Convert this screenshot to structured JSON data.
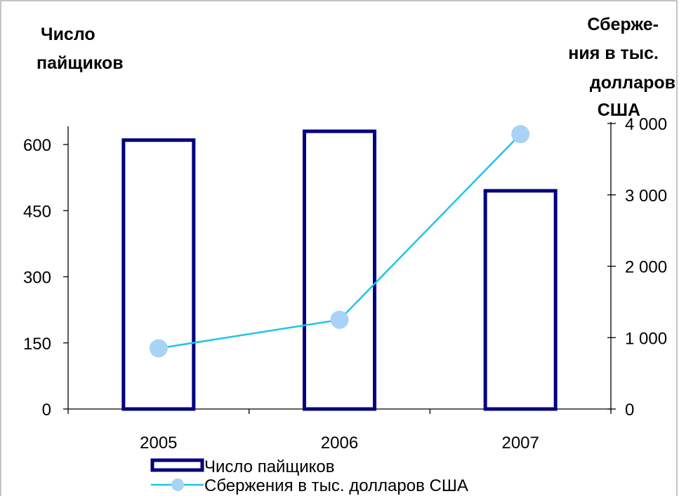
{
  "chart_data": {
    "type": "bar",
    "categories": [
      "2005",
      "2006",
      "2007"
    ],
    "series": [
      {
        "name": "Число пайщиков",
        "type": "bar",
        "axis": "left",
        "values": [
          610,
          630,
          495
        ],
        "color": "#000080"
      },
      {
        "name": "Сбержения в тыс. долларов США",
        "type": "line",
        "axis": "right",
        "values": [
          850,
          1250,
          3850
        ],
        "color": "#1fc4e8",
        "marker_color": "#a9d3f5"
      }
    ],
    "y_left": {
      "title_lines": [
        "Число",
        "пайщиков"
      ],
      "ticks": [
        0,
        150,
        300,
        450,
        600
      ],
      "tick_labels": [
        "0",
        "150",
        "300",
        "450",
        "600"
      ],
      "range": [
        0,
        650
      ]
    },
    "y_right": {
      "title_lines": [
        "Сберже-",
        "ния в тыс.",
        "долларов",
        "США"
      ],
      "ticks": [
        0,
        1000,
        2000,
        3000,
        4000
      ],
      "tick_labels": [
        "0",
        "1 000",
        "2 000",
        "3 000",
        "4 000"
      ],
      "range": [
        0,
        4000
      ]
    },
    "grid": false,
    "legend_position": "bottom"
  }
}
